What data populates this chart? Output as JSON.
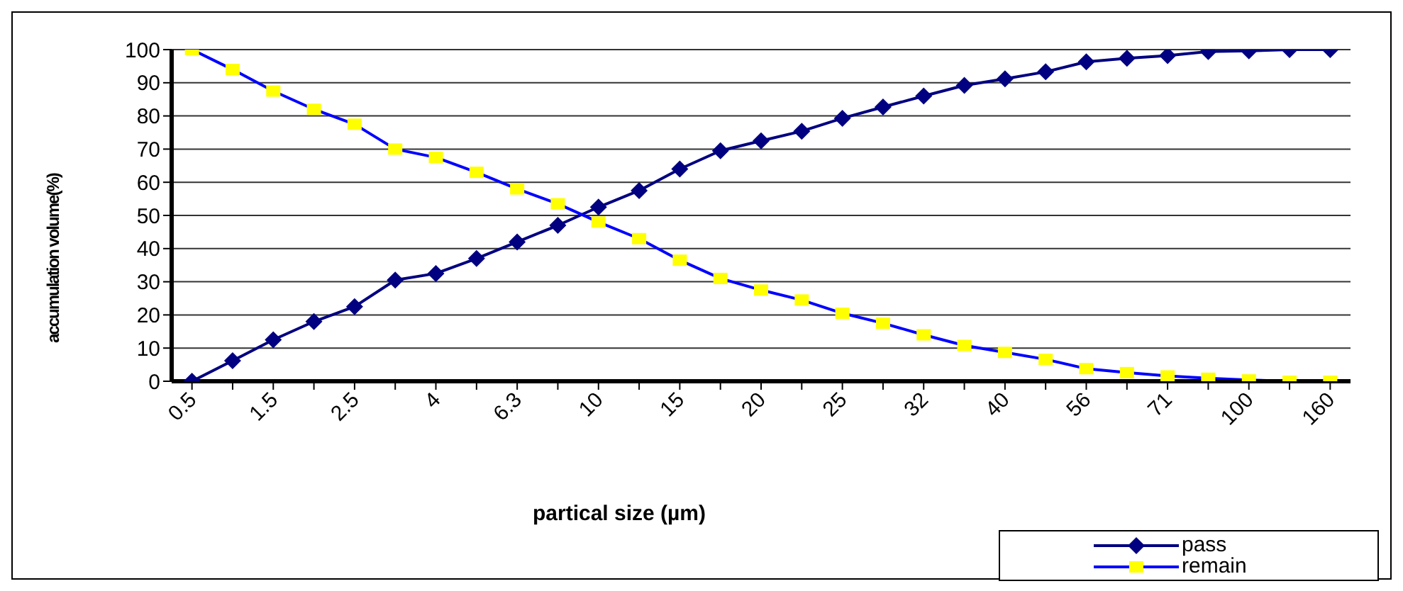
{
  "chart_data": {
    "type": "line",
    "xlabel": "partical size (µm)",
    "ylabel": "accumulation volume(%)",
    "categories": [
      "0.5",
      null,
      "1.5",
      null,
      "2.5",
      null,
      "4",
      null,
      "6.3",
      null,
      "10",
      null,
      "15",
      null,
      "20",
      null,
      "25",
      null,
      "32",
      null,
      "40",
      null,
      "56",
      null,
      "71",
      null,
      "100",
      null,
      "160"
    ],
    "series": [
      {
        "name": "pass",
        "color": "#000080",
        "marker": "diamond",
        "values": [
          0,
          6.2,
          12.5,
          18,
          22.5,
          30.5,
          32.5,
          37,
          42,
          47,
          52.5,
          57.5,
          64,
          69.5,
          72.5,
          75.4,
          79.3,
          82.7,
          86,
          89.2,
          91.2,
          93.3,
          96.3,
          97.4,
          98.2,
          99.4,
          99.6,
          100,
          100
        ]
      },
      {
        "name": "remain",
        "color": "#0000ff",
        "marker": "square",
        "colors": [
          "#ffff00",
          "#ffff00",
          "#ffff00",
          "#ffff00",
          "#ffff00",
          "#ffff00",
          "#ffff00",
          "#ffff00",
          "#ffff00",
          "#ffff00",
          "#ffff00",
          "#ffff00",
          "#ffff00",
          "#ffff00",
          "#ffff00",
          "#ffff00",
          "#ffff00",
          "#ffff00",
          "#ffff00",
          "#ffff00",
          "#ffff00",
          "#ffff00",
          "#ffff00",
          "#ffff00",
          "#ffff00",
          "#ffff00",
          "#ffff00",
          "#ffff00",
          "#ffff00"
        ],
        "values": [
          100,
          94,
          87.5,
          82,
          77.5,
          70,
          67.5,
          63,
          58,
          53.5,
          48,
          43,
          36.5,
          31,
          27.5,
          24.5,
          20.5,
          17.5,
          14,
          10.8,
          8.7,
          6.6,
          3.8,
          2.6,
          1.6,
          0.9,
          0.4,
          0,
          0
        ]
      }
    ],
    "ylim": [
      0,
      100
    ],
    "yticks": [
      0,
      10,
      20,
      30,
      40,
      50,
      60,
      70,
      80,
      90,
      100
    ],
    "grid": "y",
    "legend": "bottom right"
  }
}
